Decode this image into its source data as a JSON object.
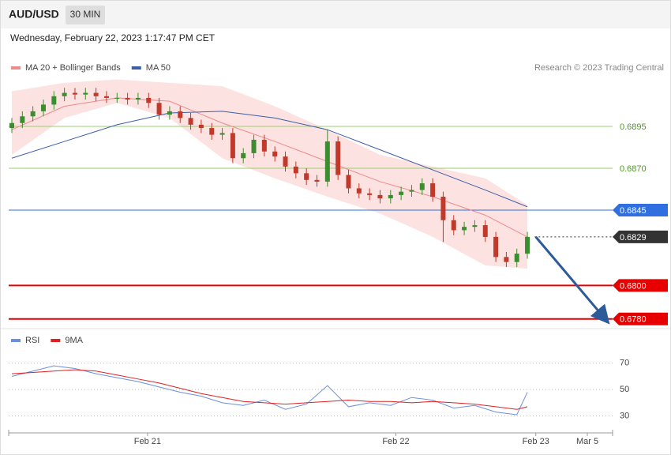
{
  "header": {
    "symbol": "AUD/USD",
    "interval": "30 MIN",
    "timestamp": "Wednesday, February 22, 2023 1:17:47 PM CET",
    "credit": "Research © 2023 Trading Central"
  },
  "chart_data": [
    {
      "type": "candlestick",
      "xlim": [
        -0.3,
        57.1
      ],
      "ylim": [
        0.6775,
        0.6923
      ],
      "up_color": "#3c8d2f",
      "down_color": "#c0392b",
      "ohlc": {
        "open": [
          0.6894,
          0.6897,
          0.6901,
          0.6904,
          0.6908,
          0.6913,
          0.6915,
          0.6914,
          0.6915,
          0.6913,
          0.6912,
          0.6912,
          0.6911,
          0.6912,
          0.6909,
          0.6902,
          0.6904,
          0.69,
          0.6896,
          0.6894,
          0.689,
          0.6891,
          0.6876,
          0.6879,
          0.6887,
          0.688,
          0.6877,
          0.6871,
          0.6867,
          0.6863,
          0.6862,
          0.6886,
          0.6866,
          0.6858,
          0.6855,
          0.6854,
          0.6852,
          0.6854,
          0.6856,
          0.6857,
          0.6861,
          0.6853,
          0.6839,
          0.6833,
          0.6835,
          0.6836,
          0.6829,
          0.6817,
          0.6814,
          0.6819
        ],
        "high": [
          0.69,
          0.6904,
          0.6907,
          0.6911,
          0.6916,
          0.6918,
          0.6918,
          0.6918,
          0.6918,
          0.6916,
          0.6915,
          0.6915,
          0.6915,
          0.6915,
          0.6912,
          0.6907,
          0.6907,
          0.6903,
          0.6899,
          0.6897,
          0.6894,
          0.6894,
          0.6882,
          0.689,
          0.689,
          0.6883,
          0.688,
          0.6874,
          0.687,
          0.6866,
          0.6893,
          0.6889,
          0.6869,
          0.6861,
          0.6858,
          0.6857,
          0.6857,
          0.6859,
          0.686,
          0.6864,
          0.6864,
          0.6856,
          0.6842,
          0.6838,
          0.6839,
          0.6839,
          0.6832,
          0.682,
          0.6822,
          0.6832
        ],
        "low": [
          0.6891,
          0.6894,
          0.6898,
          0.6901,
          0.6905,
          0.691,
          0.6911,
          0.6911,
          0.691,
          0.6909,
          0.6909,
          0.6908,
          0.6908,
          0.6906,
          0.6899,
          0.6899,
          0.6897,
          0.6893,
          0.6891,
          0.6887,
          0.6887,
          0.6873,
          0.6873,
          0.6876,
          0.6877,
          0.6874,
          0.6868,
          0.6864,
          0.686,
          0.6859,
          0.6859,
          0.6863,
          0.6855,
          0.6852,
          0.6851,
          0.6849,
          0.6849,
          0.6851,
          0.6853,
          0.6854,
          0.685,
          0.6826,
          0.683,
          0.683,
          0.6832,
          0.6826,
          0.6814,
          0.6811,
          0.6811,
          0.6816
        ],
        "close": [
          0.6897,
          0.6901,
          0.6904,
          0.6908,
          0.6913,
          0.6915,
          0.6914,
          0.6915,
          0.6913,
          0.6912,
          0.6912,
          0.6911,
          0.6912,
          0.6909,
          0.6902,
          0.6904,
          0.69,
          0.6896,
          0.6894,
          0.689,
          0.6891,
          0.6876,
          0.6879,
          0.6887,
          0.688,
          0.6877,
          0.6871,
          0.6867,
          0.6863,
          0.6862,
          0.6886,
          0.6866,
          0.6858,
          0.6855,
          0.6854,
          0.6852,
          0.6854,
          0.6856,
          0.6857,
          0.6861,
          0.6853,
          0.6839,
          0.6833,
          0.6835,
          0.6836,
          0.6829,
          0.6817,
          0.6814,
          0.6819,
          0.6829
        ]
      },
      "ma_x": [
        0,
        5,
        10,
        15,
        20,
        25,
        30,
        35,
        40,
        45,
        49
      ],
      "series": [
        {
          "name": "MA 20 + Bollinger Bands",
          "color": "#ef8a8a",
          "band_color": "#fde2e2",
          "values": [
            0.6893,
            0.6907,
            0.6912,
            0.691,
            0.6897,
            0.6886,
            0.6874,
            0.6862,
            0.6853,
            0.6842,
            0.6829
          ],
          "upper": [
            0.6916,
            0.6921,
            0.6923,
            0.6921,
            0.6919,
            0.6907,
            0.6893,
            0.6878,
            0.6871,
            0.6864,
            0.6848
          ],
          "lower": [
            0.6878,
            0.69,
            0.6909,
            0.69,
            0.6876,
            0.6864,
            0.6853,
            0.6843,
            0.6829,
            0.6812,
            0.681
          ]
        },
        {
          "name": "MA 50",
          "color": "#3b5ea8",
          "values": [
            0.6876,
            0.6886,
            0.6896,
            0.6903,
            0.6904,
            0.69,
            0.6893,
            0.6881,
            0.6869,
            0.6857,
            0.6847
          ]
        }
      ],
      "levels": [
        {
          "price": 0.6895,
          "color": "#9acd6e",
          "width": 1,
          "line": "solid",
          "label_style": "text",
          "text_color": "#4c9a1e"
        },
        {
          "price": {
            "value": 0.687,
            "label": "0.6870"
          },
          "color": "#9acd6e",
          "width": 1,
          "line": "solid",
          "label_style": "text",
          "text_color": "#4c9a1e"
        },
        {
          "price": 0.6845,
          "color": "#2f6fe0",
          "width": 1,
          "line": "solid",
          "label_style": "box",
          "text_color": "#ffffff"
        },
        {
          "price": 0.6829,
          "color": "#333333",
          "width": 1,
          "line": "dotted",
          "label_style": "box",
          "text_color": "#ffffff"
        },
        {
          "price": {
            "value": 0.68,
            "label": "0.6800"
          },
          "color": "#e60000",
          "width": 2,
          "line": "solid",
          "label_style": "box",
          "text_color": "#ffffff"
        },
        {
          "price": {
            "value": 0.678,
            "label": "0.6780"
          },
          "color": "#e60000",
          "width": 2,
          "line": "solid",
          "label_style": "box",
          "text_color": "#ffffff"
        }
      ],
      "arrow": {
        "from": [
          49.8,
          0.6829
        ],
        "to": [
          56.4,
          0.678
        ],
        "color": "#2d5b9a"
      }
    },
    {
      "type": "line",
      "xlim": [
        -0.3,
        57.1
      ],
      "ylim": [
        19,
        89
      ],
      "x": [
        0,
        2,
        4,
        6,
        8,
        10,
        12,
        14,
        16,
        18,
        20,
        22,
        24,
        26,
        28,
        30,
        32,
        34,
        36,
        38,
        40,
        42,
        44,
        46,
        48,
        49
      ],
      "series": [
        {
          "name": "RSI",
          "color": "#6a8ee0",
          "values": [
            60,
            64,
            68,
            66,
            62,
            59,
            56,
            52,
            48,
            45,
            40,
            38,
            42,
            35,
            39,
            53,
            37,
            40,
            38,
            44,
            42,
            36,
            38,
            33,
            31,
            48
          ]
        },
        {
          "name": "9MA",
          "color": "#e02020",
          "values": [
            62,
            63,
            64,
            65,
            64,
            61,
            58,
            55,
            51,
            47,
            44,
            41,
            40,
            39,
            40,
            41,
            42,
            41,
            41,
            40,
            41,
            40,
            39,
            37,
            35,
            37
          ]
        }
      ],
      "yticks": [
        30,
        50,
        70
      ],
      "xticks": [
        {
          "value": 12.9,
          "label": "Feb 21"
        },
        {
          "value": 36.5,
          "label": "Feb 22"
        },
        {
          "value": 49.8,
          "label": "Feb 23"
        },
        {
          "value": 54.7,
          "label": "Mar 5"
        }
      ]
    }
  ]
}
